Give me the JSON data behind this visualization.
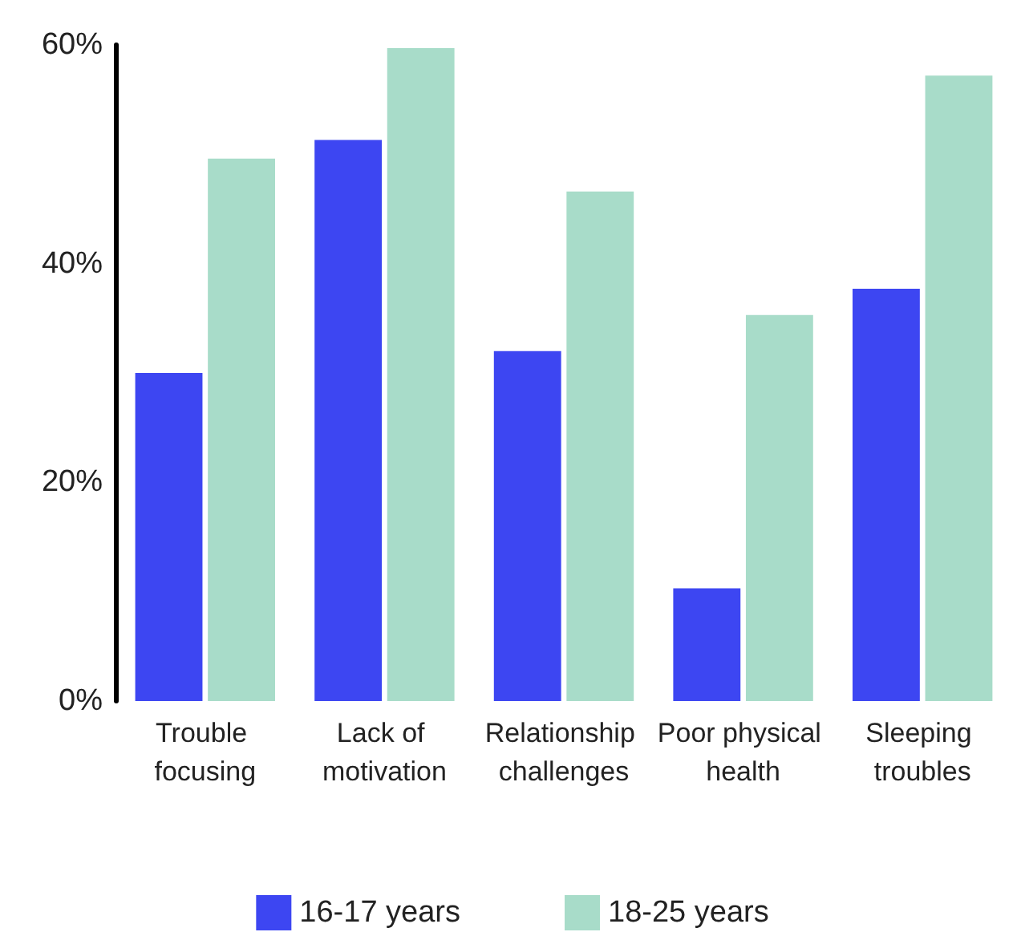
{
  "chart_data": {
    "type": "bar",
    "categories": [
      "Trouble focusing",
      "Lack of motivation",
      "Relationship challenges",
      "Poor physical health",
      "Sleeping troubles"
    ],
    "series": [
      {
        "name": "16-17 years",
        "color": "#3d46f2",
        "values": [
          30,
          51.3,
          32,
          10.3,
          37.7
        ]
      },
      {
        "name": "18-25 years",
        "color": "#a8dcc9",
        "values": [
          49.6,
          59.7,
          46.6,
          35.3,
          57.2
        ]
      }
    ],
    "ylim": [
      0,
      60
    ],
    "yticks": [
      {
        "value": 0,
        "label": "0%"
      },
      {
        "value": 20,
        "label": "20%"
      },
      {
        "value": 40,
        "label": "40%"
      },
      {
        "value": 60,
        "label": "60%"
      }
    ],
    "grid": false,
    "legend": "bottom"
  }
}
